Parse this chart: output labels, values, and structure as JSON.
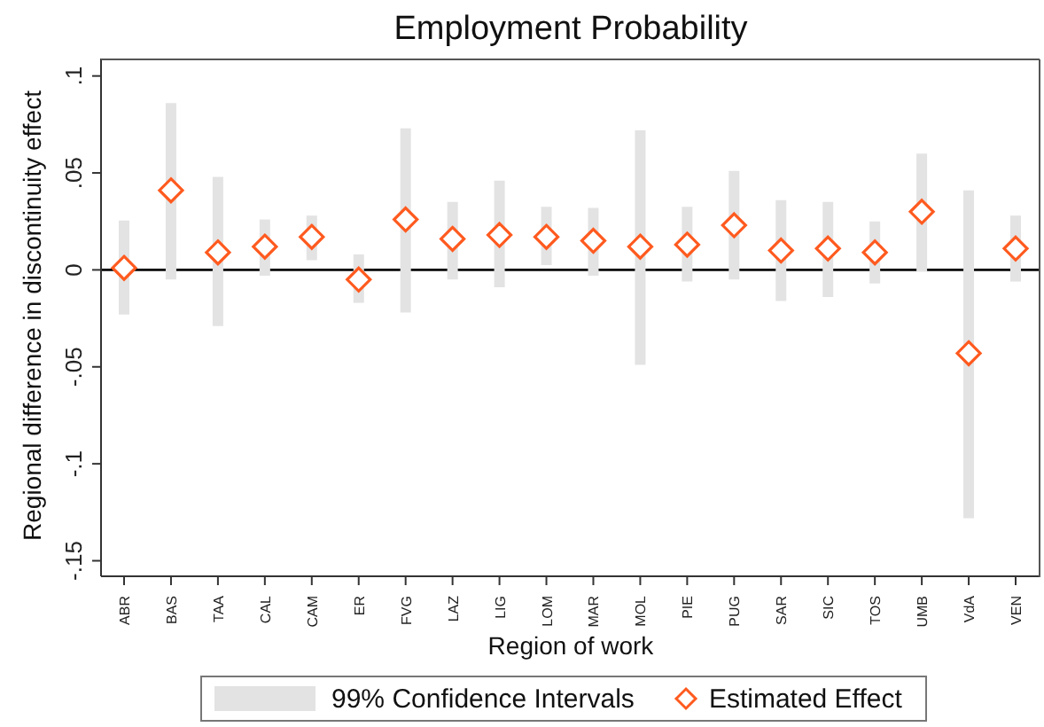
{
  "chart_data": {
    "type": "scatter",
    "title": "Employment Probability",
    "xlabel": "Region of work",
    "ylabel": "Regional difference in discontinuity effect",
    "categories": [
      "ABR",
      "BAS",
      "TAA",
      "CAL",
      "CAM",
      "ER",
      "FVG",
      "LAZ",
      "LIG",
      "LOM",
      "MAR",
      "MOL",
      "PIE",
      "PUG",
      "SAR",
      "SIC",
      "TOS",
      "UMB",
      "VdA",
      "VEN"
    ],
    "series": [
      {
        "name": "Estimated Effect",
        "color": "#ff5a1f",
        "values": [
          0.001,
          0.041,
          0.009,
          0.012,
          0.017,
          -0.005,
          0.026,
          0.016,
          0.018,
          0.017,
          0.015,
          0.012,
          0.013,
          0.023,
          0.01,
          0.011,
          0.009,
          0.03,
          -0.043,
          0.011
        ],
        "errors": [
          [
            -0.023,
            0.0255
          ],
          [
            -0.005,
            0.086
          ],
          [
            -0.029,
            0.048
          ],
          [
            -0.003,
            0.026
          ],
          [
            0.005,
            0.028
          ],
          [
            -0.017,
            0.008
          ],
          [
            -0.022,
            0.073
          ],
          [
            -0.005,
            0.035
          ],
          [
            -0.009,
            0.046
          ],
          [
            0.0025,
            0.0325
          ],
          [
            -0.003,
            0.032
          ],
          [
            -0.049,
            0.072
          ],
          [
            -0.006,
            0.0325
          ],
          [
            -0.005,
            0.051
          ],
          [
            -0.016,
            0.036
          ],
          [
            -0.014,
            0.035
          ],
          [
            -0.007,
            0.025
          ],
          [
            -0.001,
            0.06
          ],
          [
            -0.128,
            0.041
          ],
          [
            -0.006,
            0.028
          ]
        ]
      }
    ],
    "annotations": [
      "99% Confidence Intervals"
    ],
    "ylim": [
      -0.158,
      0.109
    ],
    "yticks": [
      {
        "value": -0.15,
        "label": "-.15"
      },
      {
        "value": -0.1,
        "label": "-.1"
      },
      {
        "value": -0.05,
        "label": "-.05"
      },
      {
        "value": 0,
        "label": "0"
      },
      {
        "value": 0.05,
        "label": ".05"
      },
      {
        "value": 0.1,
        "label": ".1"
      }
    ],
    "ref_lines": [
      {
        "axis": "y",
        "value": 0,
        "color": "#000000"
      }
    ],
    "marker": "diamond",
    "legend": "bottom"
  }
}
